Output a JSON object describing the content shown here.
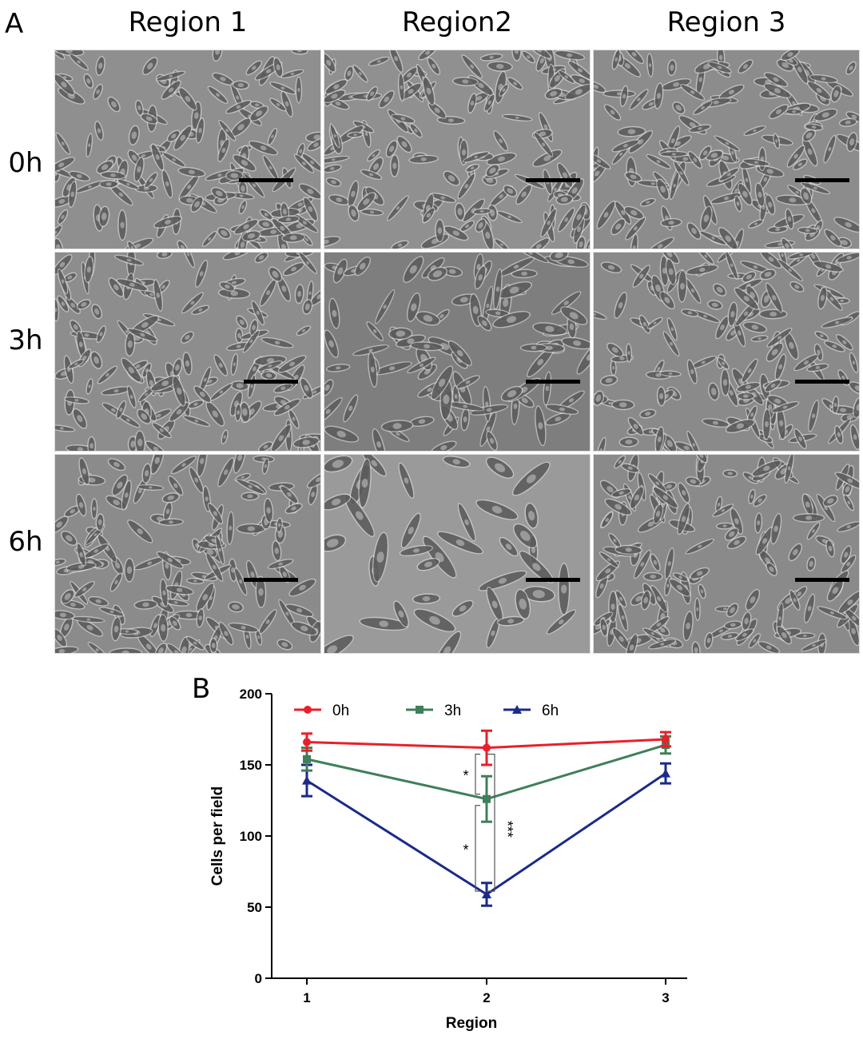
{
  "panel_a": {
    "letter": "A",
    "columns": [
      "Region 1",
      "Region2",
      "Region 3"
    ],
    "rows": [
      "0h",
      "3h",
      "6h"
    ],
    "images": [
      {
        "row": "0h",
        "col": "Region 1",
        "tone": "#8f8f8f",
        "density": "high"
      },
      {
        "row": "0h",
        "col": "Region2",
        "tone": "#909090",
        "density": "high"
      },
      {
        "row": "0h",
        "col": "Region 3",
        "tone": "#8c8c8c",
        "density": "high"
      },
      {
        "row": "3h",
        "col": "Region 1",
        "tone": "#8d8d8d",
        "density": "high"
      },
      {
        "row": "3h",
        "col": "Region2",
        "tone": "#7e7e7e",
        "density": "medium"
      },
      {
        "row": "3h",
        "col": "Region 3",
        "tone": "#8a8a8a",
        "density": "high"
      },
      {
        "row": "6h",
        "col": "Region 1",
        "tone": "#8b8b8b",
        "density": "high"
      },
      {
        "row": "6h",
        "col": "Region2",
        "tone": "#9a9a9a",
        "density": "low"
      },
      {
        "row": "6h",
        "col": "Region 3",
        "tone": "#8a8a8a",
        "density": "high"
      }
    ]
  },
  "panel_b": {
    "letter": "B"
  },
  "chart_data": {
    "type": "line",
    "xlabel": "Region",
    "ylabel": "Cells per field",
    "categories": [
      "1",
      "2",
      "3"
    ],
    "ylim": [
      0,
      200
    ],
    "yticks": [
      "0",
      "50",
      "100",
      "150",
      "200"
    ],
    "legend_position": "top",
    "series": [
      {
        "name": "0h",
        "color": "#e8202a",
        "marker": "circle",
        "values": [
          166,
          162,
          168
        ],
        "errors": [
          6,
          12,
          5
        ]
      },
      {
        "name": "3h",
        "color": "#3f7f5a",
        "marker": "square",
        "values": [
          154,
          126,
          164
        ],
        "errors": [
          8,
          16,
          6
        ]
      },
      {
        "name": "6h",
        "color": "#1c2a8a",
        "marker": "triangle",
        "values": [
          139,
          59,
          144
        ],
        "errors": [
          11,
          8,
          7
        ]
      }
    ],
    "annotations": [
      {
        "text": "*",
        "between": [
          "0h",
          "3h"
        ],
        "category": "2"
      },
      {
        "text": "*",
        "between": [
          "3h",
          "6h"
        ],
        "category": "2"
      },
      {
        "text": "***",
        "between": [
          "0h",
          "6h"
        ],
        "category": "2"
      }
    ]
  }
}
